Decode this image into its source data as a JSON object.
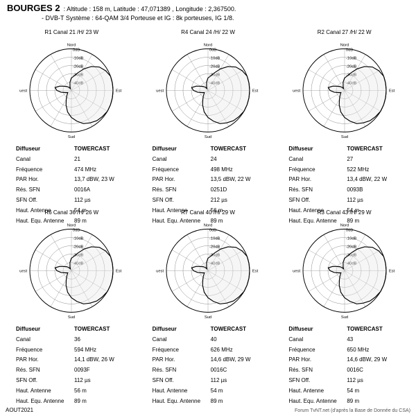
{
  "header": {
    "site": "BOURGES 2",
    "altitude": "Altitude : 158 m,",
    "latitude": "Latitude : 47,071389 ,",
    "longitude": "Longitude : 2,367500.",
    "system": "- DVB-T   Système : 64-QAM 3/4   Porteuse et IG : 8k porteuses, IG 1/8."
  },
  "style": {
    "bg": "#ffffff",
    "stroke": "#000000",
    "grid_stroke": "#888888",
    "fill": "#e8e8e8",
    "pattern_fill": "#ffffff",
    "label_color": "#000000",
    "rings": 5,
    "radius": 62,
    "compass": {
      "n": "Nord",
      "e": "Est",
      "s": "Sud",
      "w": "Ouest"
    },
    "ring_labels": [
      "-40dB",
      "-30dB",
      "-20dB",
      "-10dB",
      "0dB"
    ]
  },
  "row_labels": [
    "Diffuseur",
    "Canal",
    "Fréquence",
    "PAR Hor.",
    "Rés. SFN",
    "SFN Off.",
    "Haut. Antenne",
    "Haut. Equ. Antenne"
  ],
  "panels": [
    {
      "title": "R1  Canal 21 /H/  23 W",
      "rows": [
        "TOWERCAST",
        "21",
        "474 MHz",
        "13,7 dBW, 23 W",
        "0016A",
        "112 µs",
        "54 m",
        "89 m"
      ],
      "pattern": [
        -28,
        -26,
        -22,
        -16,
        -10,
        -5,
        -2,
        0,
        0,
        0,
        0,
        0,
        0,
        -1,
        -2,
        -4,
        -6,
        -10,
        -14,
        -19,
        -25,
        -30,
        -33,
        -35,
        -36,
        -34,
        -30,
        -26,
        -24,
        -28,
        -32,
        -34,
        -36,
        -38,
        -36,
        -32
      ]
    },
    {
      "title": "R4  Canal 24 /H/  22 W",
      "rows": [
        "TOWERCAST",
        "24",
        "498 MHz",
        "13,5 dBW, 22 W",
        "0251D",
        "212 µs",
        "56 m",
        "89 m"
      ],
      "pattern": [
        -28,
        -26,
        -22,
        -16,
        -10,
        -5,
        -2,
        0,
        0,
        0,
        0,
        0,
        0,
        -1,
        -2,
        -4,
        -6,
        -10,
        -14,
        -19,
        -25,
        -30,
        -33,
        -35,
        -36,
        -34,
        -30,
        -26,
        -24,
        -28,
        -32,
        -34,
        -36,
        -38,
        -36,
        -32
      ]
    },
    {
      "title": "R2  Canal 27 /H/  22 W",
      "rows": [
        "TOWERCAST",
        "27",
        "522 MHz",
        "13,4 dBW, 22 W",
        "0093B",
        "112 µs",
        "54 m",
        "89 m"
      ],
      "pattern": [
        -28,
        -26,
        -22,
        -16,
        -10,
        -5,
        -2,
        0,
        0,
        0,
        0,
        0,
        0,
        -1,
        -2,
        -4,
        -6,
        -10,
        -14,
        -19,
        -25,
        -30,
        -33,
        -35,
        -36,
        -34,
        -30,
        -26,
        -24,
        -28,
        -32,
        -34,
        -36,
        -38,
        -36,
        -32
      ]
    },
    {
      "title": "R6  Canal 36 /H/  26 W",
      "rows": [
        "TOWERCAST",
        "36",
        "594 MHz",
        "14,1 dBW, 26 W",
        "0093F",
        "112 µs",
        "56 m",
        "89 m"
      ],
      "pattern": [
        -28,
        -26,
        -22,
        -16,
        -10,
        -5,
        -2,
        0,
        0,
        0,
        0,
        0,
        0,
        -1,
        -2,
        -4,
        -6,
        -10,
        -14,
        -19,
        -25,
        -30,
        -33,
        -35,
        -36,
        -34,
        -30,
        -26,
        -24,
        -28,
        -32,
        -34,
        -36,
        -38,
        -36,
        -32
      ]
    },
    {
      "title": "R7  Canal 40 /H/  29 W",
      "rows": [
        "TOWERCAST",
        "40",
        "626 MHz",
        "14,6 dBW, 29 W",
        "0016C",
        "112 µs",
        "54 m",
        "89 m"
      ],
      "pattern": [
        -28,
        -26,
        -22,
        -16,
        -10,
        -5,
        -2,
        0,
        0,
        0,
        0,
        0,
        0,
        -1,
        -2,
        -4,
        -6,
        -10,
        -14,
        -19,
        -25,
        -30,
        -33,
        -35,
        -36,
        -34,
        -30,
        -26,
        -24,
        -28,
        -32,
        -34,
        -36,
        -38,
        -36,
        -32
      ]
    },
    {
      "title": "R3  Canal 43 /H/  29 W",
      "rows": [
        "TOWERCAST",
        "43",
        "650 MHz",
        "14,6 dBW, 29 W",
        "0016C",
        "112 µs",
        "54 m",
        "89 m"
      ],
      "pattern": [
        -28,
        -26,
        -22,
        -16,
        -10,
        -5,
        -2,
        0,
        0,
        0,
        0,
        0,
        0,
        -1,
        -2,
        -4,
        -6,
        -10,
        -14,
        -19,
        -25,
        -30,
        -33,
        -35,
        -36,
        -34,
        -30,
        -26,
        -24,
        -28,
        -32,
        -34,
        -36,
        -38,
        -36,
        -32
      ]
    }
  ],
  "footer": {
    "left": "AOUT2021",
    "right": "Forum TvNT.net (d'après la Base de Donnée du CSA)"
  }
}
